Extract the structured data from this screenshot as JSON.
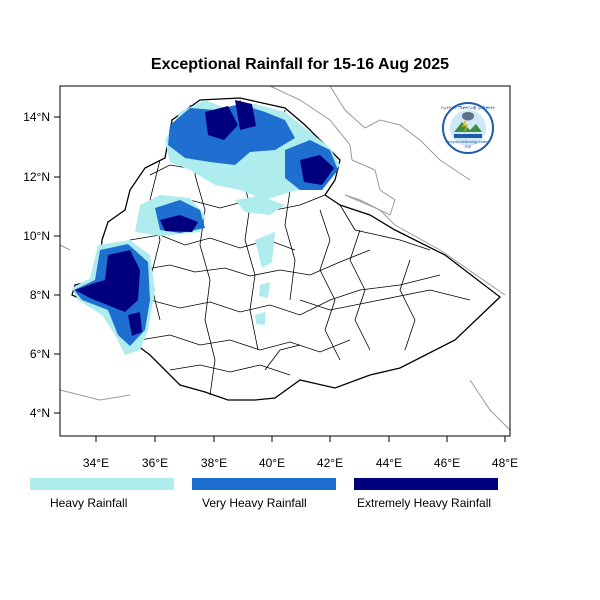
{
  "title": "Exceptional Rainfall for 15-16 Aug 2025",
  "map": {
    "lon_ticks": [
      "34°E",
      "36°E",
      "38°E",
      "40°E",
      "42°E",
      "44°E",
      "46°E",
      "48°E"
    ],
    "lat_ticks": [
      "14°N",
      "12°N",
      "10°N",
      "8°N",
      "6°N",
      "4°N"
    ]
  },
  "legend": [
    {
      "label": "Heavy Rainfall",
      "color": "#aeecee"
    },
    {
      "label": "Very Heavy Rainfall",
      "color": "#1e6fd0"
    },
    {
      "label": "Extremely Heavy Rainfall",
      "color": "#00007e"
    }
  ],
  "logo": {
    "text_am": "የኢትዮጵያ ሜቲዎሮሎጂ ኢንስቲትዩት",
    "text_en": "Ethiopian Meteorology Institute",
    "abbr": "EMI"
  }
}
